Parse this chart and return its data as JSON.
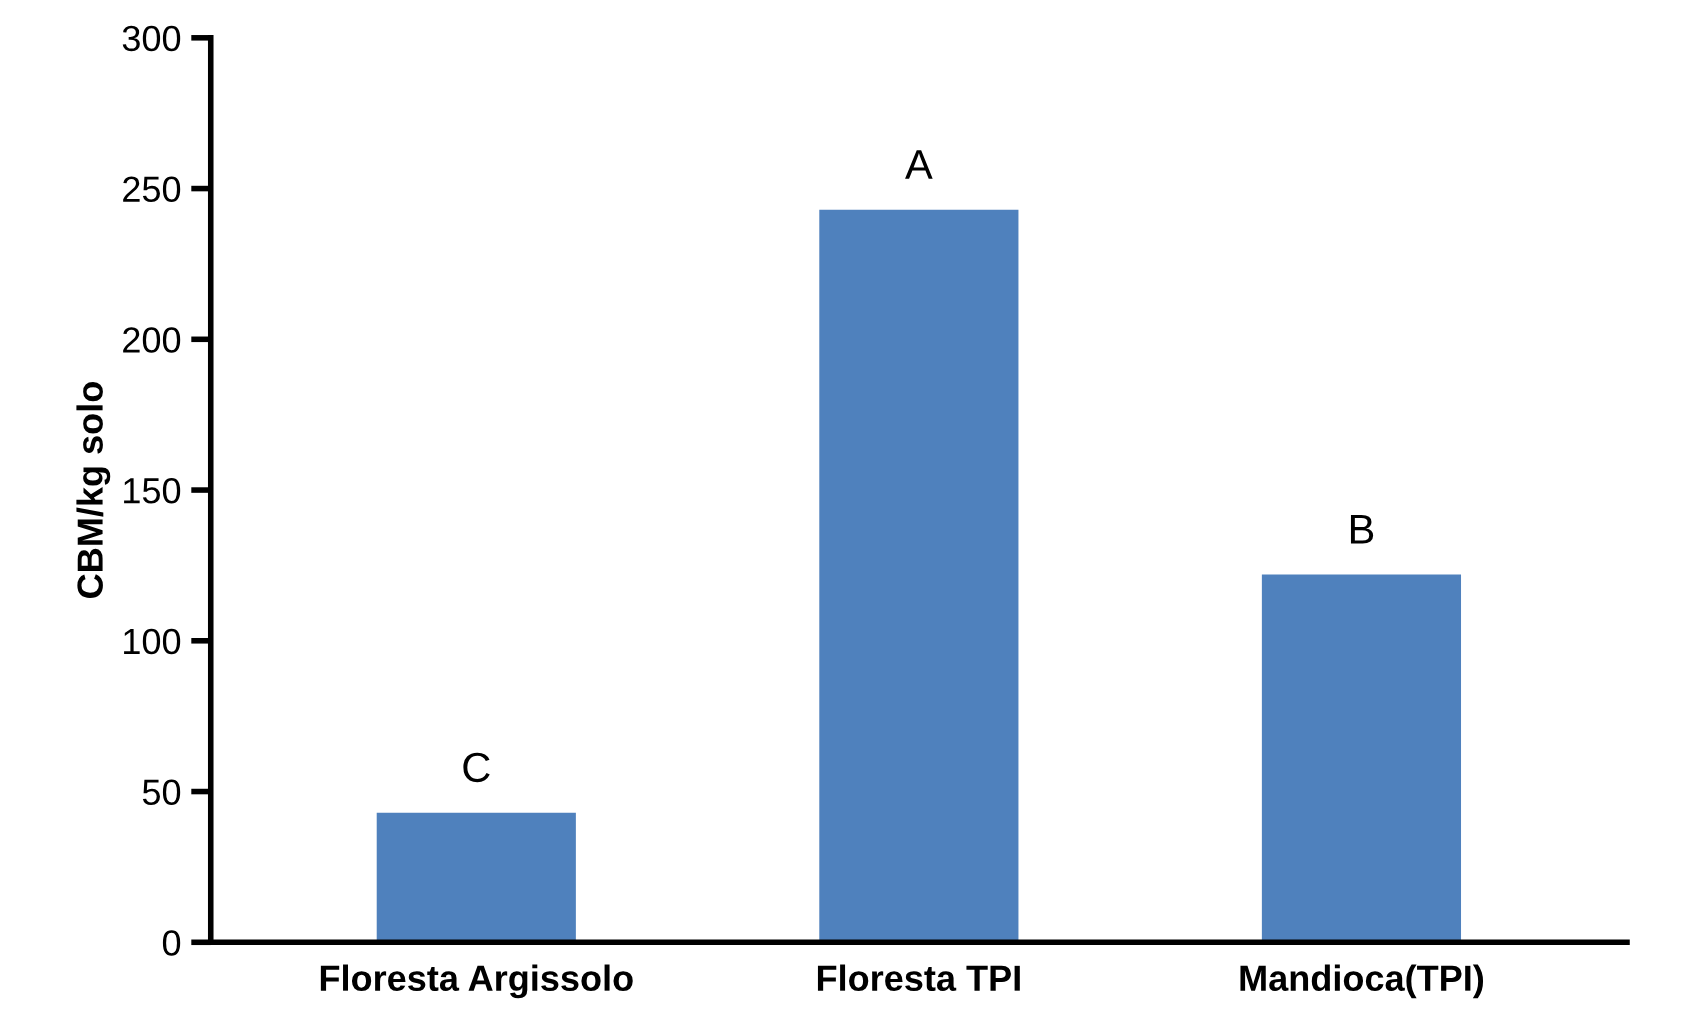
{
  "chart_data": {
    "type": "bar",
    "ylabel": "CBM/kg solo",
    "categories": [
      "Floresta Argissolo",
      "Floresta TPI",
      "Mandioca(TPI)"
    ],
    "values": [
      43,
      243,
      122
    ],
    "color": "#4f81bd",
    "ylim": [
      0,
      300
    ],
    "yticks": [
      0,
      50,
      100,
      150,
      200,
      250,
      300
    ],
    "grid": false,
    "annotations": [
      {
        "text": "C",
        "x": "Floresta Argissolo",
        "y": 43
      },
      {
        "text": "A",
        "x": "Floresta TPI",
        "y": 243
      },
      {
        "text": "B",
        "x": "Mandioca(TPI)",
        "y": 122
      }
    ]
  }
}
